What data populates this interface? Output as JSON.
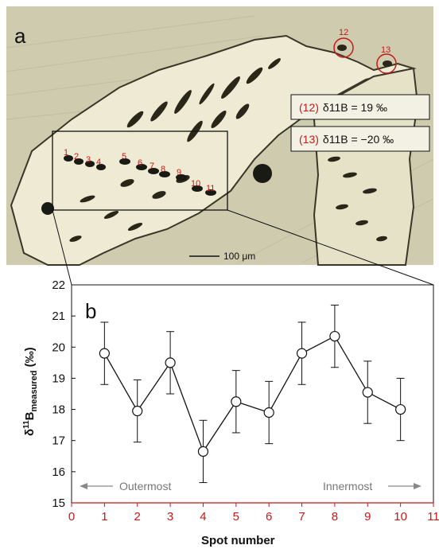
{
  "panel_a": {
    "label": "a",
    "scale_bar": "100 μm",
    "annotations": [
      {
        "spot": "(12)",
        "text": "δ11B = 19 ‰"
      },
      {
        "spot": "(13)",
        "text": "δ11B = −20 ‰"
      }
    ],
    "spot_labels": [
      "1",
      "2",
      "3",
      "4",
      "5",
      "6",
      "7",
      "8",
      "9",
      "10",
      "11",
      "12",
      "13"
    ]
  },
  "panel_b": {
    "label": "b",
    "outermost": "Outermost",
    "innermost": "Innermost"
  },
  "chart_data": {
    "type": "line",
    "x": [
      1,
      2,
      3,
      4,
      5,
      6,
      7,
      8,
      9,
      10
    ],
    "values": [
      19.8,
      17.95,
      19.5,
      16.65,
      18.25,
      17.9,
      19.8,
      20.35,
      18.55,
      18.0
    ],
    "error": 1.0,
    "xlabel": "Spot number",
    "ylabel": "δ11Bmeasured (‰)",
    "xlim": [
      0,
      11
    ],
    "ylim": [
      15,
      22
    ],
    "xticks": [
      "0",
      "1",
      "2",
      "3",
      "4",
      "5",
      "6",
      "7",
      "8",
      "9",
      "10",
      "11"
    ],
    "yticks": [
      "15",
      "16",
      "17",
      "18",
      "19",
      "20",
      "21",
      "22"
    ]
  },
  "colors": {
    "spot_red": "#c41a1a",
    "line": "#111111",
    "arrow_gray": "#888888"
  }
}
